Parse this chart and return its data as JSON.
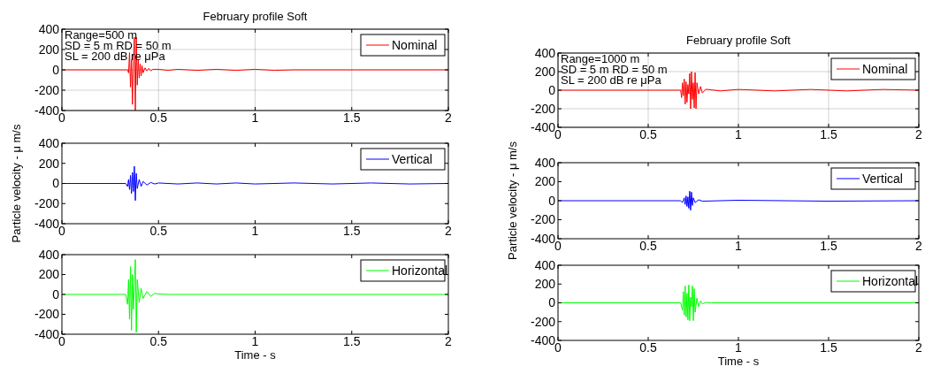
{
  "chart_data": [
    {
      "type": "line",
      "title": "February profile Soft",
      "annotations": [
        "Range=500 m",
        "SD = 5 m  RD = 50 m",
        "SL = 200 dB re μPa"
      ],
      "xlim": [
        0,
        2
      ],
      "xticks": [
        0,
        0.5,
        1,
        1.5,
        2
      ],
      "ylim": [
        -400,
        400
      ],
      "yticks": [
        -400,
        -200,
        0,
        200,
        400
      ],
      "grid": true,
      "legend": "top right",
      "series": [
        {
          "name": "Nominal",
          "color": "#ff0000",
          "x": [
            0,
            0.34,
            0.345,
            0.35,
            0.355,
            0.36,
            0.365,
            0.37,
            0.375,
            0.38,
            0.385,
            0.39,
            0.395,
            0.4,
            0.405,
            0.41,
            0.415,
            0.42,
            0.43,
            0.44,
            0.45,
            0.46,
            0.47,
            0.5,
            0.55,
            0.6,
            0.7,
            0.8,
            0.9,
            1.0,
            1.1,
            1.2,
            2
          ],
          "values": [
            0,
            0,
            -30,
            170,
            -170,
            100,
            -340,
            80,
            320,
            -400,
            320,
            -150,
            100,
            -80,
            60,
            -60,
            40,
            -30,
            20,
            -10,
            15,
            -10,
            5,
            5,
            -5,
            5,
            -5,
            5,
            -5,
            5,
            -5,
            0,
            0
          ]
        }
      ]
    },
    {
      "type": "line",
      "ylabel": "Particle velocity -  μ m/s",
      "xlim": [
        0,
        2
      ],
      "xticks": [
        0,
        0.5,
        1,
        1.5,
        2
      ],
      "ylim": [
        -400,
        400
      ],
      "yticks": [
        -400,
        -200,
        0,
        200,
        400
      ],
      "legend": "top right",
      "series": [
        {
          "name": "Vertical",
          "color": "#0000ff",
          "x": [
            0,
            0.33,
            0.34,
            0.345,
            0.35,
            0.355,
            0.36,
            0.365,
            0.37,
            0.375,
            0.38,
            0.385,
            0.39,
            0.4,
            0.41,
            0.42,
            0.44,
            0.46,
            0.48,
            0.5,
            0.6,
            0.7,
            0.8,
            0.9,
            1.0,
            1.2,
            1.4,
            1.6,
            1.8,
            2
          ],
          "values": [
            0,
            0,
            -30,
            40,
            -60,
            80,
            -100,
            110,
            -80,
            170,
            -170,
            100,
            -50,
            40,
            -30,
            20,
            -15,
            10,
            -5,
            5,
            -5,
            5,
            -5,
            5,
            -5,
            5,
            -5,
            5,
            -5,
            0
          ]
        }
      ]
    },
    {
      "type": "line",
      "xlabel": "Time - s",
      "xlim": [
        0,
        2
      ],
      "xticks": [
        0,
        0.5,
        1,
        1.5,
        2
      ],
      "ylim": [
        -400,
        400
      ],
      "yticks": [
        -400,
        -200,
        0,
        200,
        400
      ],
      "legend": "top right",
      "series": [
        {
          "name": "Horizontal",
          "color": "#00ff00",
          "x": [
            0,
            0.33,
            0.34,
            0.345,
            0.35,
            0.355,
            0.36,
            0.365,
            0.37,
            0.375,
            0.38,
            0.385,
            0.39,
            0.4,
            0.41,
            0.42,
            0.44,
            0.46,
            0.48,
            0.5,
            0.55,
            2
          ],
          "values": [
            0,
            0,
            -100,
            150,
            -250,
            280,
            -360,
            200,
            -150,
            100,
            350,
            -380,
            150,
            -80,
            60,
            -40,
            30,
            -20,
            10,
            5,
            0,
            0
          ]
        }
      ]
    },
    {
      "type": "line",
      "title": "February profile Soft",
      "annotations": [
        "Range=1000 m",
        "SD = 5 m  RD = 50 m",
        "SL = 200 dB re μPa"
      ],
      "xlim": [
        0,
        2
      ],
      "xticks": [
        0,
        0.5,
        1,
        1.5,
        2
      ],
      "ylim": [
        -400,
        400
      ],
      "yticks": [
        -400,
        -200,
        0,
        200,
        400
      ],
      "grid": true,
      "legend": "top right",
      "series": [
        {
          "name": "Nominal",
          "color": "#ff0000",
          "x": [
            0,
            0.68,
            0.685,
            0.69,
            0.695,
            0.7,
            0.705,
            0.71,
            0.715,
            0.72,
            0.725,
            0.73,
            0.735,
            0.74,
            0.745,
            0.75,
            0.755,
            0.76,
            0.765,
            0.77,
            0.78,
            0.79,
            0.8,
            0.82,
            0.9,
            1.0,
            1.2,
            1.4,
            1.6,
            1.8,
            2
          ],
          "values": [
            0,
            0,
            -80,
            80,
            -60,
            120,
            -150,
            90,
            -130,
            60,
            -40,
            180,
            -200,
            200,
            -100,
            80,
            -190,
            190,
            -200,
            80,
            -40,
            40,
            -30,
            10,
            -8,
            8,
            -8,
            8,
            -8,
            8,
            0
          ]
        }
      ]
    },
    {
      "type": "line",
      "ylabel": "Particle velocity -  μ m/s",
      "xlim": [
        0,
        2
      ],
      "xticks": [
        0,
        0.5,
        1,
        1.5,
        2
      ],
      "ylim": [
        -400,
        400
      ],
      "yticks": [
        -400,
        -200,
        0,
        200,
        400
      ],
      "legend": "top right",
      "series": [
        {
          "name": "Vertical",
          "color": "#0000ff",
          "x": [
            0,
            0.68,
            0.69,
            0.7,
            0.705,
            0.71,
            0.715,
            0.72,
            0.725,
            0.73,
            0.735,
            0.74,
            0.745,
            0.75,
            0.76,
            0.78,
            0.8,
            1,
            1.5,
            2
          ],
          "values": [
            0,
            0,
            -20,
            30,
            -40,
            50,
            -60,
            40,
            -80,
            100,
            -100,
            90,
            -50,
            30,
            -20,
            10,
            -5,
            5,
            -5,
            0
          ]
        }
      ]
    },
    {
      "type": "line",
      "xlabel": "Time - s",
      "xlim": [
        0,
        2
      ],
      "xticks": [
        0,
        0.5,
        1,
        1.5,
        2
      ],
      "ylim": [
        -400,
        400
      ],
      "yticks": [
        -400,
        -200,
        0,
        200,
        400
      ],
      "legend": "top right",
      "series": [
        {
          "name": "Horizontal",
          "color": "#00ff00",
          "x": [
            0,
            0.68,
            0.69,
            0.695,
            0.7,
            0.705,
            0.71,
            0.715,
            0.72,
            0.725,
            0.73,
            0.735,
            0.74,
            0.745,
            0.75,
            0.755,
            0.76,
            0.77,
            0.78,
            0.79,
            0.8,
            0.82,
            0.85,
            2
          ],
          "values": [
            0,
            0,
            -80,
            120,
            -130,
            180,
            -150,
            100,
            -180,
            190,
            -190,
            60,
            -40,
            180,
            -190,
            150,
            -100,
            50,
            -40,
            20,
            -10,
            5,
            0,
            0
          ]
        }
      ]
    }
  ]
}
